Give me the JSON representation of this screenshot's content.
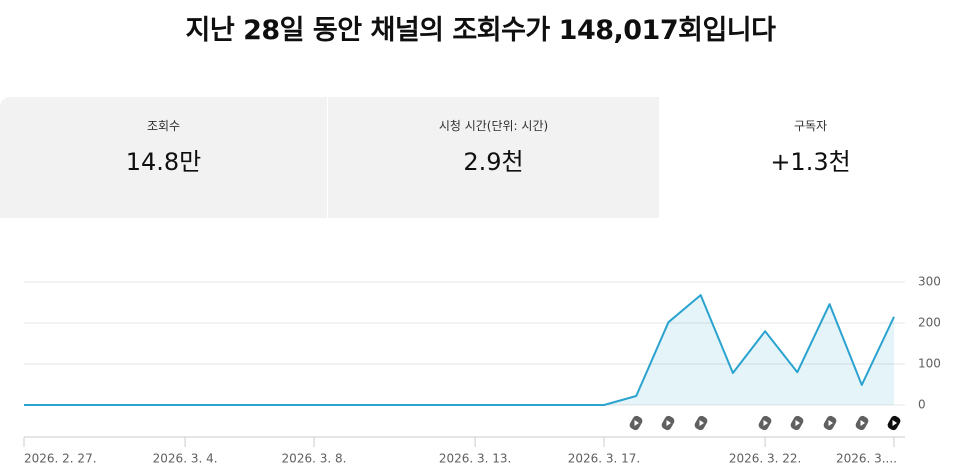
{
  "header": {
    "title": "지난 28일 동안 채널의 조회수가 148,017회입니다"
  },
  "metrics": [
    {
      "label": "조회수",
      "value": "14.8만"
    },
    {
      "label": "시청 시간(단위: 시간)",
      "value": "2.9천"
    },
    {
      "label": "구독자",
      "value": "+1.3천"
    }
  ],
  "chart_data": {
    "type": "line",
    "categories": [
      "2026. 2. 27.",
      null,
      null,
      null,
      null,
      "2026. 3. 4.",
      null,
      null,
      null,
      "2026. 3. 8.",
      null,
      null,
      null,
      null,
      "2026. 3. 13.",
      null,
      null,
      null,
      "2026. 3. 17.",
      null,
      null,
      null,
      null,
      "2026. 3. 22.",
      null,
      null,
      null,
      "2026. 3...."
    ],
    "values": [
      0,
      0,
      0,
      0,
      0,
      0,
      0,
      0,
      0,
      0,
      0,
      0,
      0,
      0,
      0,
      0,
      0,
      0,
      0,
      22,
      202,
      268,
      78,
      180,
      80,
      246,
      49,
      215
    ],
    "color": "#2ba3cf",
    "area": true,
    "ylim": [
      0,
      300
    ],
    "yticks": [
      0,
      100,
      200,
      300
    ],
    "grid": true
  }
}
